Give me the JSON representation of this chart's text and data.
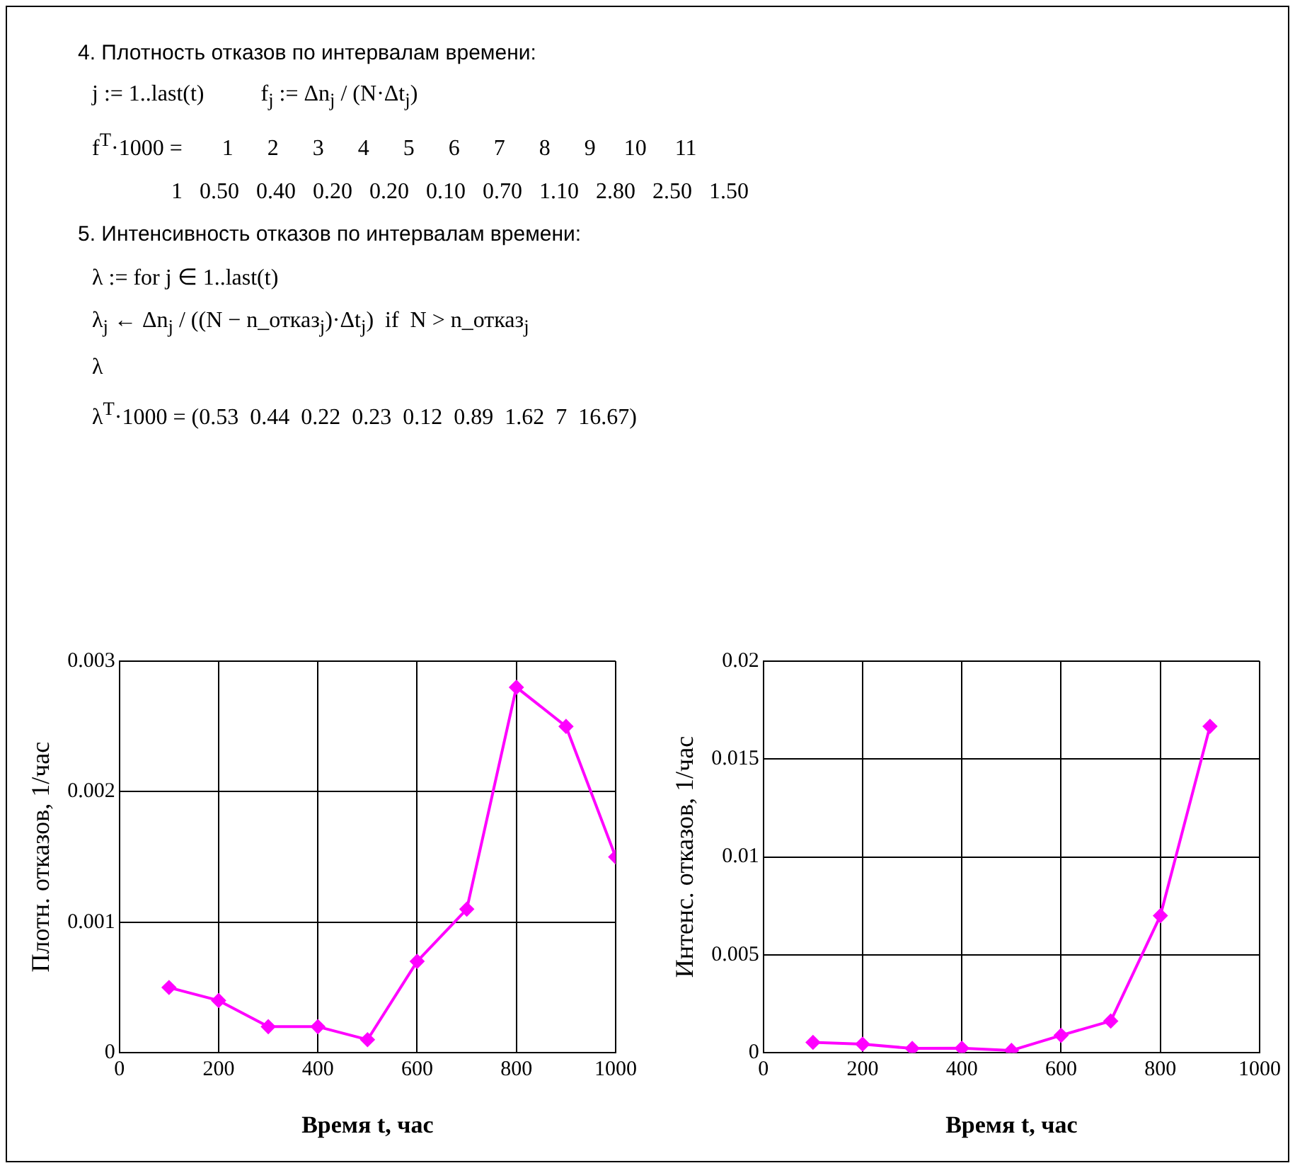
{
  "chart_data": [
    {
      "type": "line",
      "xlabel": "Время t, час",
      "ylabel": "Плотн. отказов, 1/час",
      "annotations": [
        "4. Плотность отказов по интервалам времени:",
        "j := 1..last(t)          f$_{j}$ := Δn$_{j}$ / (N·Δt$_{j}$)",
        "f$^{T}$·1000 =       1      2      3      4      5      6      7      8      9     10     11",
        "              1   0.50   0.40   0.20   0.20   0.10   0.70   1.10   2.80   2.50   1.50"
      ],
      "x": [
        100,
        200,
        300,
        400,
        500,
        600,
        700,
        800,
        900,
        1000
      ],
      "series": [
        {
          "color": "#ff00ff",
          "values": [
            0.0005,
            0.0004,
            0.0002,
            0.0002,
            0.0001,
            0.0007,
            0.0011,
            0.0028,
            0.0025,
            0.0015
          ]
        }
      ],
      "xlim": [
        0,
        1000
      ],
      "xticks": [
        0,
        200,
        400,
        600,
        800,
        1000
      ],
      "ylim": [
        0,
        0.003
      ],
      "yticks": [
        0,
        0.001,
        0.002,
        0.003
      ],
      "grid": true,
      "marker": "diamond",
      "line_style": "solid",
      "legend": false
    },
    {
      "type": "line",
      "xlabel": "Время t, час",
      "ylabel": "Интенс. отказов, 1/час",
      "annotations": [
        "5. Интенсивность отказов по интервалам времени:",
        "λ := for j ∈ 1..last(t)",
        "λ$_{j}$ ← Δn$_{j}$ / ((N − n_отказ$_{j}$)·Δt$_{j}$)  if  N > n_отказ$_{j}$",
        "λ",
        "λ$^{T}$·1000 = (0.53  0.44  0.22  0.23  0.12  0.89  1.62  7  16.67)"
      ],
      "x": [
        100,
        200,
        300,
        400,
        500,
        600,
        700,
        800,
        900
      ],
      "series": [
        {
          "color": "#ff00ff",
          "values": [
            0.00053,
            0.00044,
            0.00022,
            0.00023,
            0.00012,
            0.00089,
            0.00162,
            0.007,
            0.01667
          ]
        }
      ],
      "xlim": [
        0,
        1000
      ],
      "xticks": [
        0,
        200,
        400,
        600,
        800,
        1000
      ],
      "ylim": [
        0,
        0.02
      ],
      "yticks": [
        0,
        0.005,
        0.01,
        0.015,
        0.02
      ],
      "grid": true,
      "marker": "diamond",
      "line_style": "solid",
      "legend": false
    }
  ]
}
